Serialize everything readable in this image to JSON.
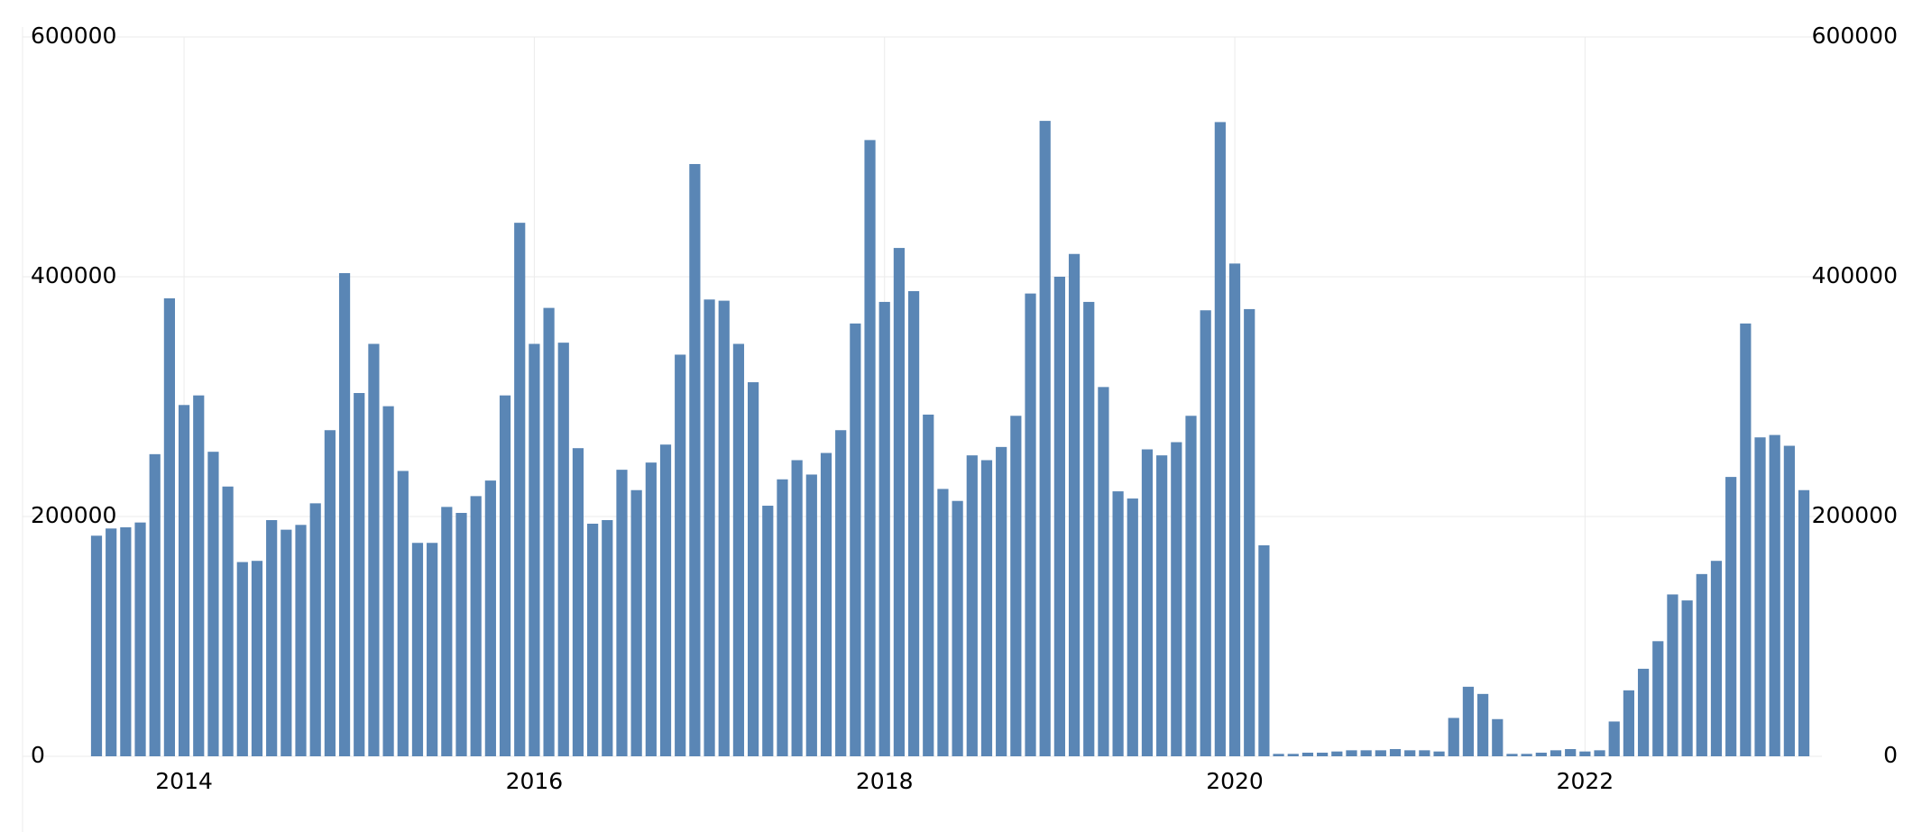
{
  "chart_data": {
    "type": "bar",
    "categories": [
      null,
      null,
      null,
      null,
      null,
      null,
      "2014",
      null,
      null,
      null,
      null,
      null,
      null,
      null,
      null,
      null,
      null,
      null,
      null,
      null,
      null,
      null,
      null,
      null,
      null,
      null,
      null,
      null,
      null,
      null,
      "2016",
      null,
      null,
      null,
      null,
      null,
      null,
      null,
      null,
      null,
      null,
      null,
      null,
      null,
      null,
      null,
      null,
      null,
      null,
      null,
      null,
      null,
      null,
      null,
      "2018",
      null,
      null,
      null,
      null,
      null,
      null,
      null,
      null,
      null,
      null,
      null,
      null,
      null,
      null,
      null,
      null,
      null,
      null,
      null,
      null,
      null,
      null,
      null,
      "2020",
      null,
      null,
      null,
      null,
      null,
      null,
      null,
      null,
      null,
      null,
      null,
      null,
      null,
      null,
      null,
      null,
      null,
      null,
      null,
      null,
      null,
      null,
      null,
      "2022",
      null,
      null,
      null,
      null,
      null,
      null,
      null,
      null,
      null,
      null,
      null,
      null,
      null,
      null,
      null
    ],
    "values": [
      184000,
      190000,
      191000,
      195000,
      252000,
      382000,
      293000,
      301000,
      254000,
      225000,
      162000,
      163000,
      197000,
      189000,
      193000,
      211000,
      272000,
      403000,
      303000,
      344000,
      292000,
      238000,
      178000,
      178000,
      208000,
      203000,
      217000,
      230000,
      301000,
      445000,
      344000,
      374000,
      345000,
      257000,
      194000,
      197000,
      239000,
      222000,
      245000,
      260000,
      335000,
      494000,
      381000,
      380000,
      344000,
      312000,
      209000,
      231000,
      247000,
      235000,
      253000,
      272000,
      361000,
      514000,
      379000,
      424000,
      388000,
      285000,
      223000,
      213000,
      251000,
      247000,
      258000,
      284000,
      386000,
      530000,
      400000,
      419000,
      379000,
      308000,
      221000,
      215000,
      256000,
      251000,
      262000,
      284000,
      372000,
      529000,
      411000,
      373000,
      176000,
      2000,
      2000,
      3000,
      3000,
      4000,
      5000,
      5000,
      5000,
      6000,
      5000,
      5000,
      4000,
      32000,
      58000,
      52000,
      31000,
      2000,
      2000,
      3000,
      5000,
      6000,
      4000,
      5000,
      29000,
      55000,
      73000,
      96000,
      135000,
      130000,
      152000,
      163000,
      233000,
      361000,
      266000,
      268000,
      259000,
      222000
    ],
    "color": "#5a86b5",
    "ylim": [
      0,
      600000
    ],
    "yticks": [
      0,
      200000,
      400000,
      600000
    ],
    "y2lim": [
      0,
      600000
    ],
    "y2ticks": [
      0,
      200000,
      400000,
      600000
    ],
    "grid": true
  }
}
